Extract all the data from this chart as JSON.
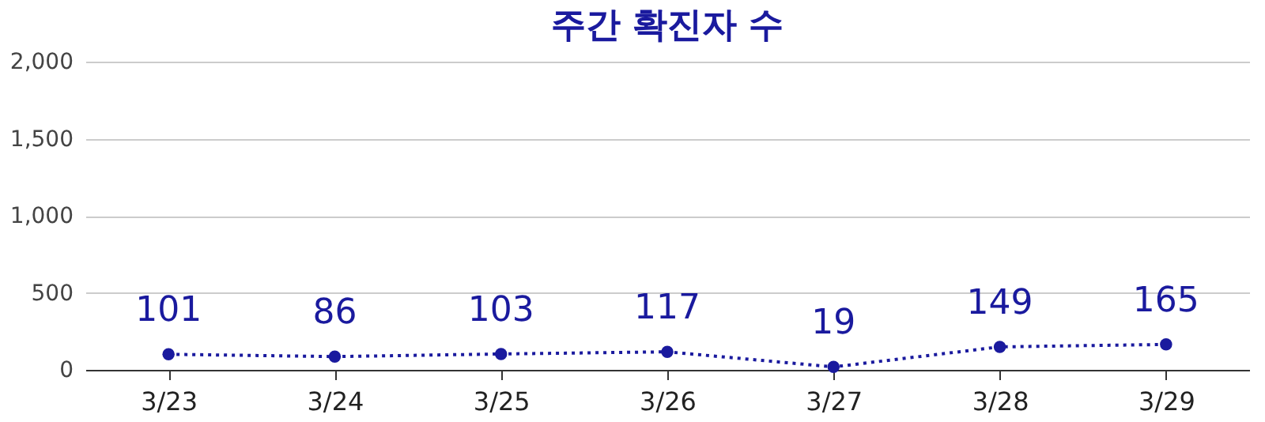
{
  "chart_data": {
    "type": "line",
    "title": "주간 확진자 수",
    "categories": [
      "3/23",
      "3/24",
      "3/25",
      "3/26",
      "3/27",
      "3/28",
      "3/29"
    ],
    "series": [
      {
        "color": "#1a1a9e",
        "values": [
          101,
          86,
          103,
          117,
          19,
          149,
          165
        ]
      }
    ],
    "ylim": [
      0,
      2000
    ],
    "yticks": [
      0,
      {
        "value": 500,
        "label": "500"
      },
      {
        "value": 1000,
        "label": "1,000"
      },
      {
        "value": 1500,
        "label": "1,500"
      },
      {
        "value": 2000,
        "label": "2,000"
      }
    ],
    "grid": "y",
    "marker": "circle",
    "line_style": "dotted",
    "data_labels": true
  }
}
